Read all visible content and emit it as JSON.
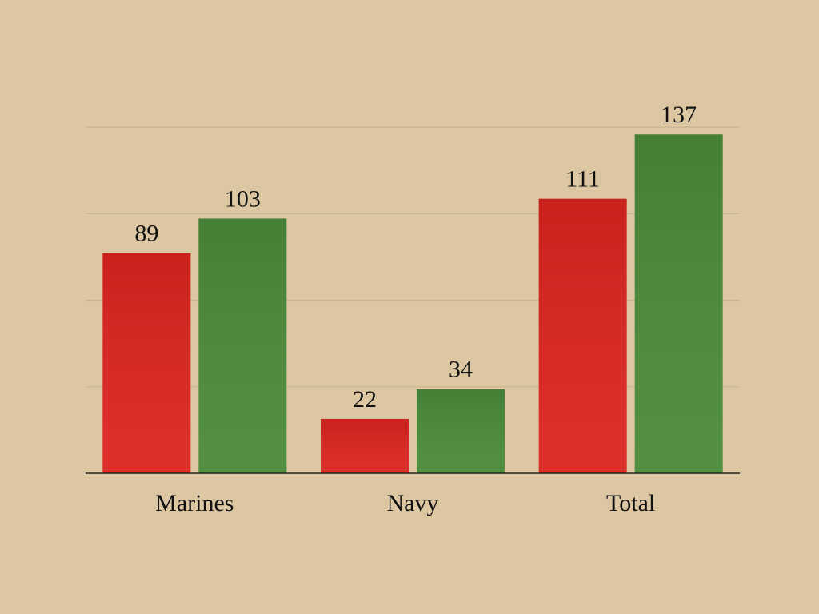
{
  "chart_data": {
    "type": "bar",
    "categories": [
      "Marines",
      "Navy",
      "Total"
    ],
    "series": [
      {
        "color": "#dc2420",
        "values": [
          89,
          22,
          111
        ]
      },
      {
        "color": "#4b8a3a",
        "values": [
          103,
          34,
          137
        ]
      }
    ],
    "ylim": [
      0,
      140
    ],
    "yticks": [
      0,
      35,
      70,
      105,
      140
    ],
    "grid": true
  }
}
